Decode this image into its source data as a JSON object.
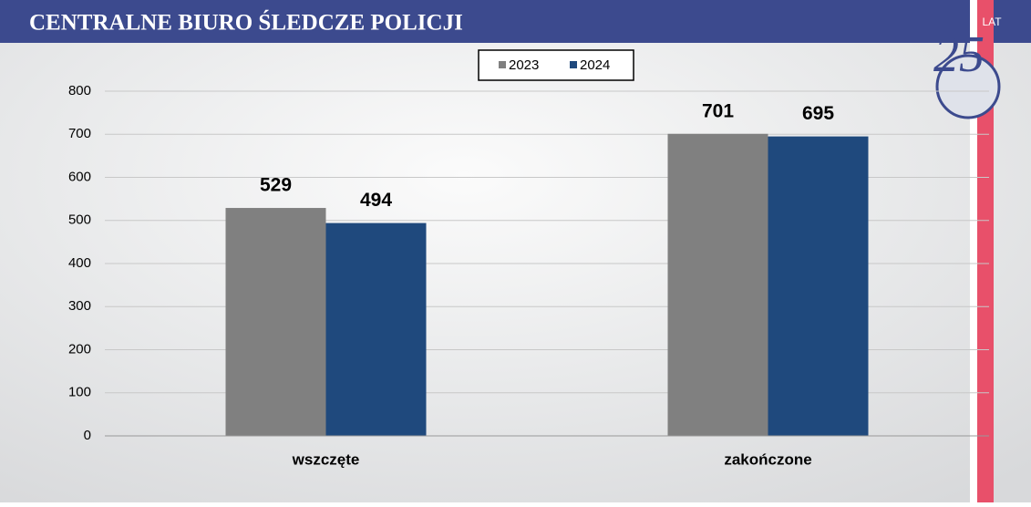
{
  "header": {
    "title": "CENTRALNE BIURO ŚLEDCZE POLICJI",
    "logo_number": "25",
    "logo_text": "LAT"
  },
  "chart_data": {
    "type": "bar",
    "categories": [
      "wszczęte",
      "zakończone"
    ],
    "series": [
      {
        "name": "2023",
        "color": "#808080",
        "values": [
          529,
          701
        ]
      },
      {
        "name": "2024",
        "color": "#1f497d",
        "values": [
          494,
          695
        ]
      }
    ],
    "ylim": [
      0,
      800
    ],
    "yticks": [
      0,
      100,
      200,
      300,
      400,
      500,
      600,
      700,
      800
    ],
    "grid": true,
    "legend": "top"
  }
}
